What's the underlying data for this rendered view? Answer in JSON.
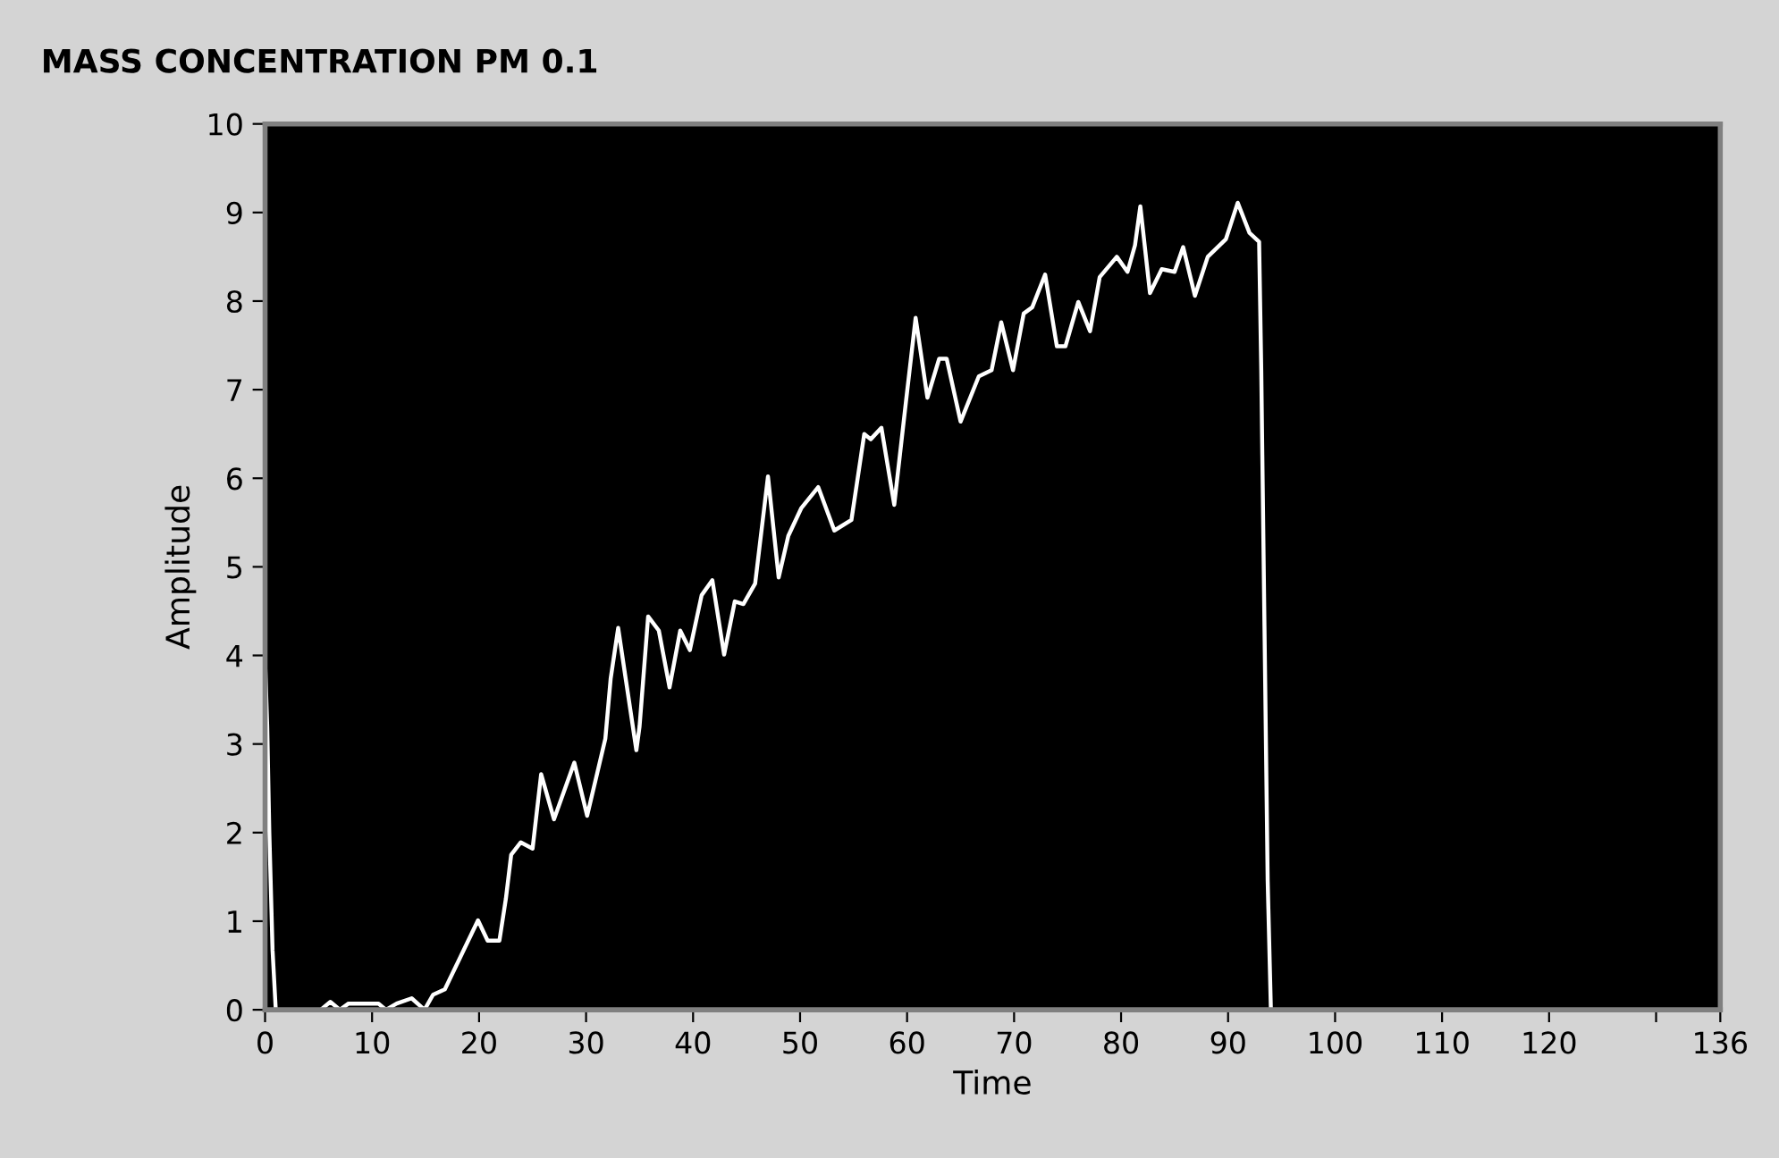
{
  "chart_data": {
    "type": "line",
    "title": "MASS CONCENTRATION PM 0.1",
    "xlabel": "Time",
    "ylabel": "Amplitude",
    "xlim": [
      0,
      136
    ],
    "ylim": [
      0,
      10
    ],
    "xticks": [
      0,
      10,
      20,
      30,
      40,
      50,
      60,
      70,
      80,
      90,
      100,
      110,
      120,
      {
        "value": 130,
        "label": null
      },
      136
    ],
    "yticks": [
      0,
      1,
      2,
      3,
      4,
      5,
      6,
      7,
      8,
      9,
      10
    ],
    "grid": false,
    "series": [
      {
        "color": "#ffffff",
        "x": [
          0,
          0.2,
          0.4,
          0.7,
          1.0,
          5.2,
          6.1,
          7,
          7.8,
          10.6,
          11.3,
          12.3,
          13.7,
          14.9,
          15.7,
          16.8,
          19.9,
          20.8,
          21.9,
          22.5,
          23,
          23.9,
          25,
          25.8,
          27,
          28.9,
          30.1,
          31.8,
          32.3,
          33,
          33.7,
          34.7,
          35,
          35.8,
          36.8,
          37.8,
          38.8,
          39.7,
          40.8,
          41.8,
          42.9,
          43.9,
          44.7,
          45.8,
          47,
          48,
          48.9,
          50.1,
          51.7,
          53.2,
          54.8,
          56,
          56.6,
          57.6,
          58.8,
          59.9,
          60.8,
          61.9,
          63,
          63.7,
          65,
          66.7,
          67.9,
          68.8,
          69.9,
          70.9,
          71.7,
          72.9,
          74,
          74.8,
          76,
          77.1,
          78,
          79.6,
          80.6,
          81.3,
          81.8,
          82.7,
          83.8,
          85,
          85.8,
          86.9,
          88.1,
          89.8,
          90.9,
          92,
          92.9,
          93.1,
          93.4,
          93.7,
          94,
          136
        ],
        "values": [
          3.94,
          3.2,
          1.99,
          0.67,
          0,
          0,
          0.09,
          0,
          0.07,
          0.07,
          0,
          0.07,
          0.13,
          0,
          0.17,
          0.23,
          1.01,
          0.78,
          0.78,
          1.25,
          1.75,
          1.89,
          1.82,
          2.66,
          2.15,
          2.79,
          2.19,
          3.06,
          3.74,
          4.31,
          3.74,
          2.93,
          3.2,
          4.44,
          4.28,
          3.64,
          4.28,
          4.06,
          4.68,
          4.85,
          4.01,
          4.61,
          4.58,
          4.81,
          6.02,
          4.88,
          5.35,
          5.66,
          5.9,
          5.41,
          5.53,
          6.5,
          6.44,
          6.57,
          5.7,
          6.87,
          7.81,
          6.91,
          7.35,
          7.35,
          6.64,
          7.15,
          7.22,
          7.76,
          7.22,
          7.86,
          7.93,
          8.3,
          7.49,
          7.49,
          7.99,
          7.66,
          8.27,
          8.5,
          8.33,
          8.63,
          9.07,
          8.09,
          8.36,
          8.33,
          8.61,
          8.06,
          8.5,
          8.7,
          9.11,
          8.77,
          8.67,
          7.22,
          4.33,
          1.46,
          0,
          0
        ]
      }
    ]
  }
}
